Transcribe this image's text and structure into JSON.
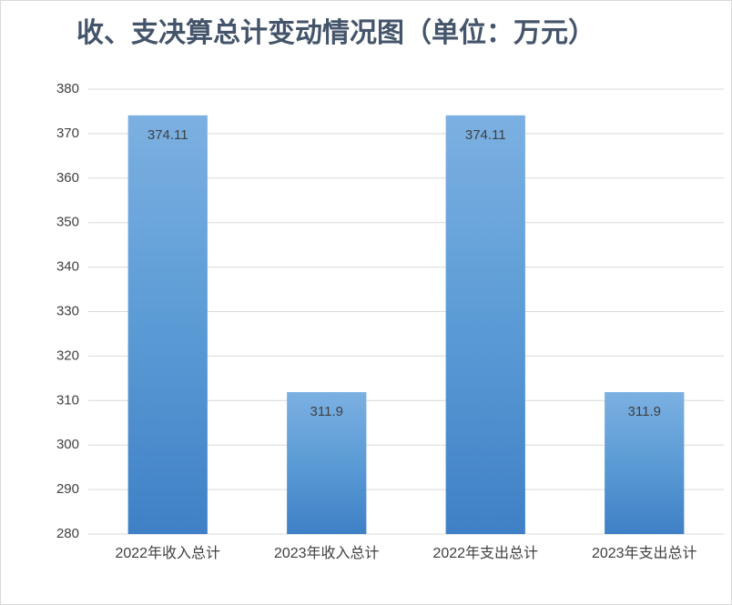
{
  "chart_data": {
    "type": "bar",
    "title": "收、支决算总计变动情况图（单位：万元）",
    "categories": [
      "2022年收入总计",
      "2023年收入总计",
      "2022年支出总计",
      "2023年支出总计"
    ],
    "values": [
      374.11,
      311.9,
      374.11,
      311.9
    ],
    "color": "#5b9bd5",
    "ylim": [
      280,
      380
    ],
    "yticks": [
      280,
      290,
      300,
      310,
      320,
      330,
      340,
      350,
      360,
      370,
      380
    ],
    "grid": true
  }
}
